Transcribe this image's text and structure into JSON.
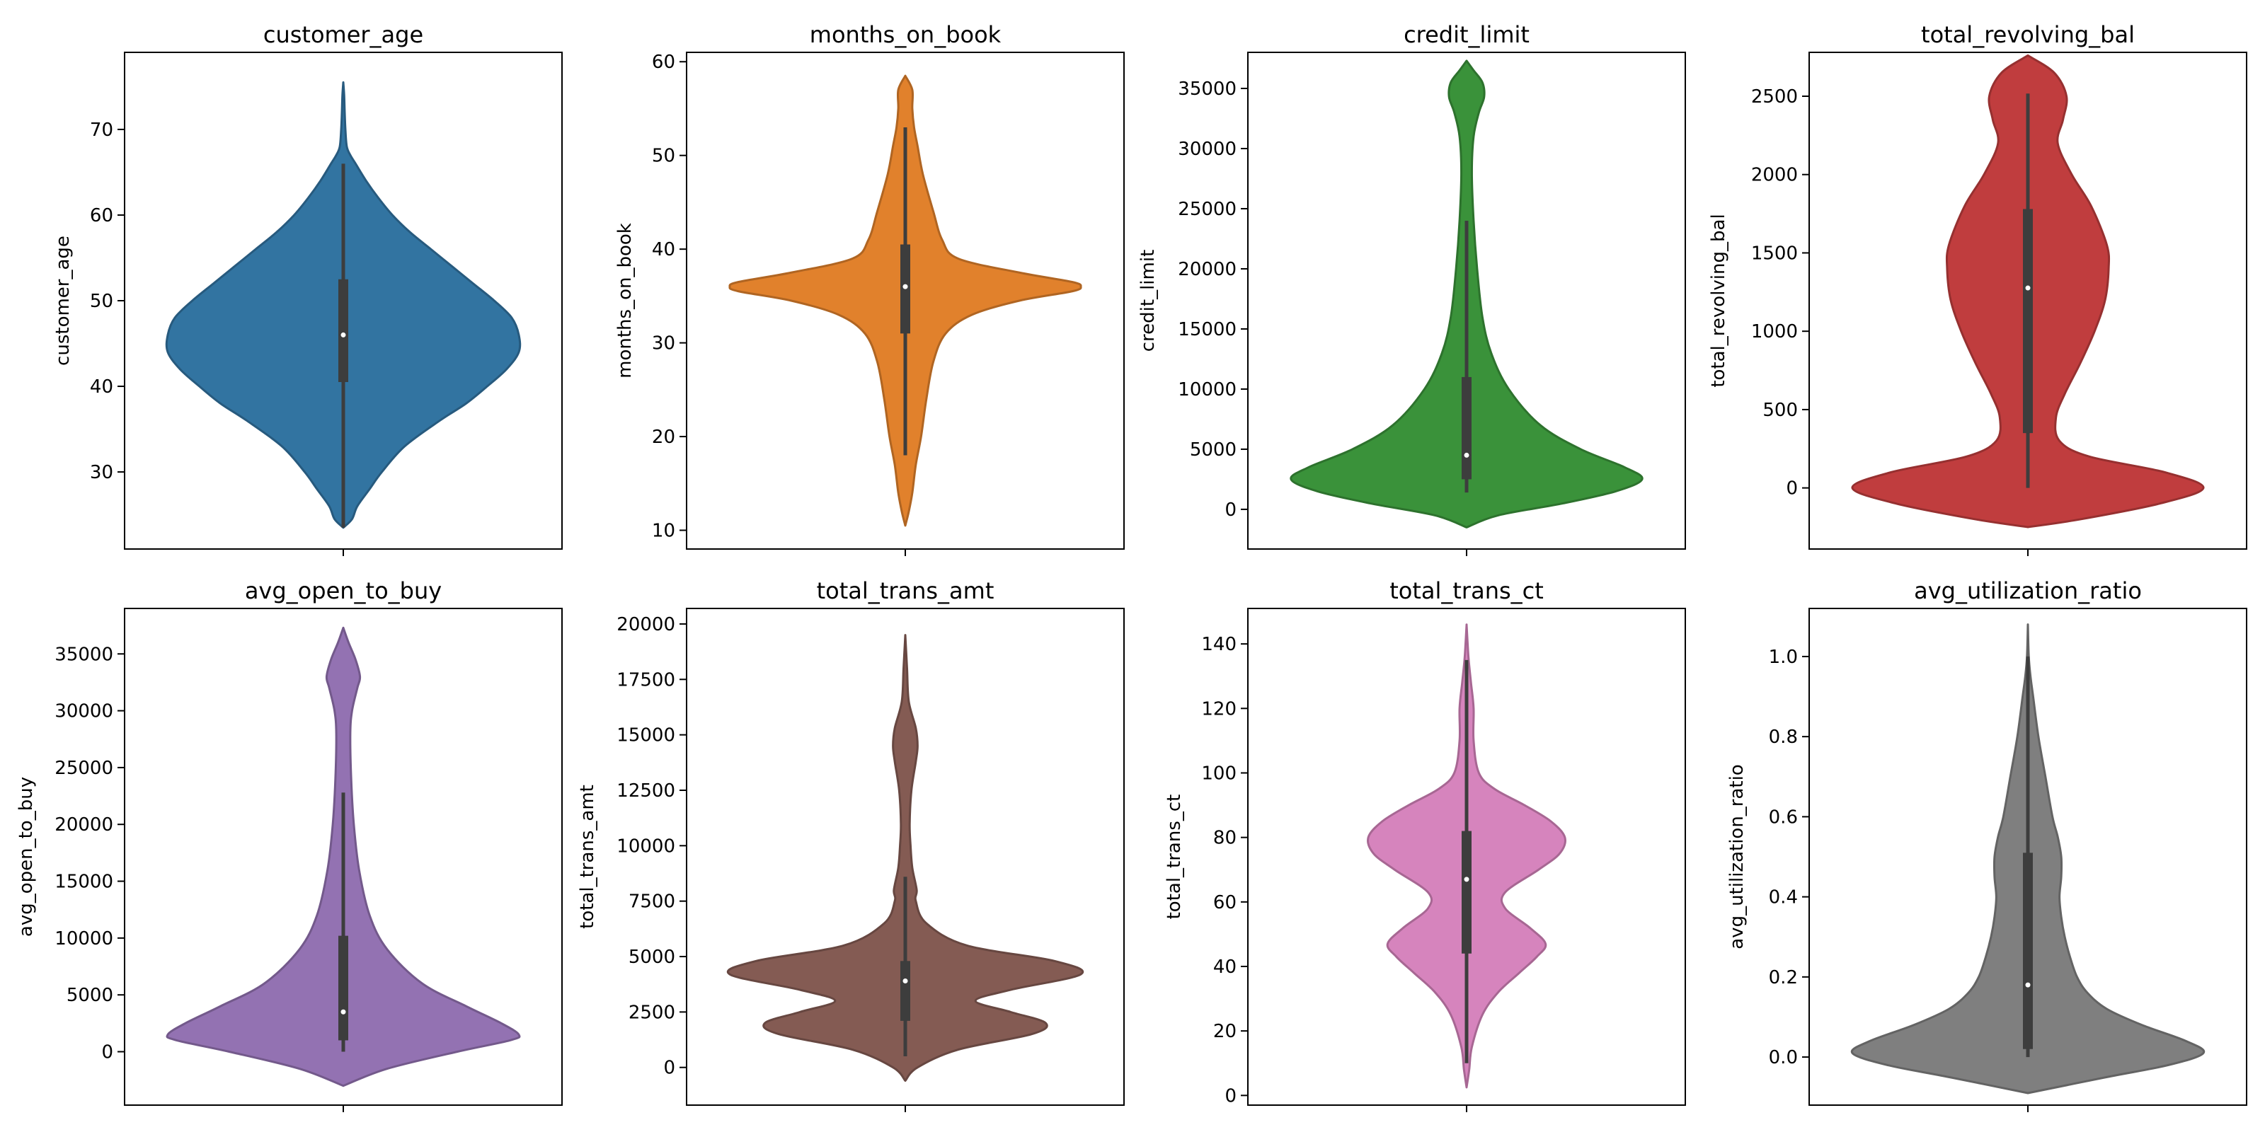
{
  "chart_data": [
    {
      "type": "violin",
      "title": "customer_age",
      "ylabel": "customer_age",
      "color": "#3274a1",
      "ylim": [
        21,
        79
      ],
      "yticks": [
        30,
        40,
        50,
        60,
        70
      ],
      "ytick_labels": [
        "30",
        "40",
        "50",
        "60",
        "70"
      ],
      "density": [
        [
          23.5,
          0
        ],
        [
          24.5,
          0.05
        ],
        [
          26,
          0.08
        ],
        [
          28,
          0.15
        ],
        [
          30,
          0.22
        ],
        [
          33,
          0.35
        ],
        [
          36,
          0.55
        ],
        [
          38,
          0.7
        ],
        [
          40,
          0.82
        ],
        [
          42,
          0.93
        ],
        [
          44,
          1.0
        ],
        [
          46,
          1.0
        ],
        [
          48,
          0.96
        ],
        [
          50,
          0.86
        ],
        [
          52,
          0.74
        ],
        [
          54,
          0.62
        ],
        [
          56,
          0.5
        ],
        [
          58,
          0.38
        ],
        [
          60,
          0.28
        ],
        [
          62,
          0.2
        ],
        [
          64,
          0.13
        ],
        [
          66,
          0.07
        ],
        [
          67,
          0.04
        ],
        [
          68,
          0.02
        ],
        [
          70,
          0.012
        ],
        [
          72,
          0.008
        ],
        [
          74,
          0.005
        ],
        [
          75.5,
          0
        ]
      ],
      "whiskers": [
        23.5,
        66
      ],
      "iqr": [
        40.5,
        52.5
      ],
      "median": 46
    },
    {
      "type": "violin",
      "title": "months_on_book",
      "ylabel": "months_on_book",
      "color": "#e1812c",
      "ylim": [
        8,
        61
      ],
      "yticks": [
        10,
        20,
        30,
        40,
        50,
        60
      ],
      "ytick_labels": [
        "10",
        "20",
        "30",
        "40",
        "50",
        "60"
      ],
      "density": [
        [
          10.5,
          0
        ],
        [
          12,
          0.02
        ],
        [
          14,
          0.04
        ],
        [
          17,
          0.06
        ],
        [
          20,
          0.09
        ],
        [
          24,
          0.12
        ],
        [
          28,
          0.16
        ],
        [
          31,
          0.23
        ],
        [
          33,
          0.38
        ],
        [
          34.5,
          0.65
        ],
        [
          35.5,
          0.95
        ],
        [
          36,
          1.0
        ],
        [
          36.5,
          0.95
        ],
        [
          37.5,
          0.65
        ],
        [
          39,
          0.3
        ],
        [
          41,
          0.21
        ],
        [
          44,
          0.16
        ],
        [
          48,
          0.1
        ],
        [
          51,
          0.07
        ],
        [
          53,
          0.05
        ],
        [
          55,
          0.04
        ],
        [
          57,
          0.04
        ],
        [
          58.5,
          0
        ]
      ],
      "whiskers": [
        18,
        53
      ],
      "iqr": [
        31,
        40.5
      ],
      "median": 36
    },
    {
      "type": "violin",
      "title": "credit_limit",
      "ylabel": "credit_limit",
      "color": "#3a923a",
      "ylim": [
        -3300,
        38000
      ],
      "yticks": [
        0,
        5000,
        10000,
        15000,
        20000,
        25000,
        30000,
        35000
      ],
      "ytick_labels": [
        "0",
        "5000",
        "10000",
        "15000",
        "20000",
        "25000",
        "30000",
        "35000"
      ],
      "density": [
        [
          -1500,
          0
        ],
        [
          -500,
          0.18
        ],
        [
          500,
          0.55
        ],
        [
          1500,
          0.85
        ],
        [
          2500,
          1.0
        ],
        [
          3500,
          0.9
        ],
        [
          5000,
          0.65
        ],
        [
          7000,
          0.42
        ],
        [
          10000,
          0.24
        ],
        [
          13000,
          0.14
        ],
        [
          16000,
          0.09
        ],
        [
          20000,
          0.06
        ],
        [
          24000,
          0.04
        ],
        [
          28000,
          0.03
        ],
        [
          31000,
          0.04
        ],
        [
          33000,
          0.07
        ],
        [
          34300,
          0.1
        ],
        [
          35500,
          0.09
        ],
        [
          36500,
          0.04
        ],
        [
          37300,
          0
        ]
      ],
      "whiskers": [
        1400,
        24000
      ],
      "iqr": [
        2500,
        11000
      ],
      "median": 4500
    },
    {
      "type": "violin",
      "title": "total_revolving_bal",
      "ylabel": "total_revolving_bal",
      "color": "#c03d3e",
      "ylim": [
        -390,
        2780
      ],
      "yticks": [
        0,
        500,
        1000,
        1500,
        2000,
        2500
      ],
      "ytick_labels": [
        "0",
        "500",
        "1000",
        "1500",
        "2000",
        "2500"
      ],
      "density": [
        [
          -250,
          0
        ],
        [
          -200,
          0.3
        ],
        [
          -100,
          0.75
        ],
        [
          0,
          1.0
        ],
        [
          100,
          0.78
        ],
        [
          200,
          0.35
        ],
        [
          300,
          0.18
        ],
        [
          450,
          0.16
        ],
        [
          600,
          0.21
        ],
        [
          800,
          0.3
        ],
        [
          1000,
          0.38
        ],
        [
          1200,
          0.44
        ],
        [
          1400,
          0.46
        ],
        [
          1550,
          0.45
        ],
        [
          1800,
          0.36
        ],
        [
          2000,
          0.25
        ],
        [
          2200,
          0.17
        ],
        [
          2350,
          0.2
        ],
        [
          2500,
          0.22
        ],
        [
          2650,
          0.15
        ],
        [
          2760,
          0
        ]
      ],
      "whiskers": [
        0,
        2517
      ],
      "iqr": [
        350,
        1780
      ],
      "median": 1276
    },
    {
      "type": "violin",
      "title": "avg_open_to_buy",
      "ylabel": "avg_open_to_buy",
      "color": "#9372b2",
      "ylim": [
        -4700,
        39000
      ],
      "yticks": [
        0,
        5000,
        10000,
        15000,
        20000,
        25000,
        30000,
        35000
      ],
      "ytick_labels": [
        "0",
        "5000",
        "10000",
        "15000",
        "20000",
        "25000",
        "30000",
        "35000"
      ],
      "density": [
        [
          -3000,
          0
        ],
        [
          -1500,
          0.25
        ],
        [
          0,
          0.65
        ],
        [
          1000,
          0.95
        ],
        [
          1500,
          1.0
        ],
        [
          2500,
          0.9
        ],
        [
          4000,
          0.7
        ],
        [
          6000,
          0.45
        ],
        [
          9000,
          0.25
        ],
        [
          12000,
          0.15
        ],
        [
          16000,
          0.09
        ],
        [
          20000,
          0.06
        ],
        [
          24000,
          0.045
        ],
        [
          28000,
          0.04
        ],
        [
          30000,
          0.05
        ],
        [
          32000,
          0.08
        ],
        [
          33000,
          0.095
        ],
        [
          34500,
          0.07
        ],
        [
          36000,
          0.03
        ],
        [
          37300,
          0
        ]
      ],
      "whiskers": [
        0,
        22800
      ],
      "iqr": [
        1000,
        10200
      ],
      "median": 3500
    },
    {
      "type": "violin",
      "title": "total_trans_amt",
      "ylabel": "total_trans_amt",
      "color": "#845b53",
      "ylim": [
        -1700,
        20700
      ],
      "yticks": [
        0,
        2500,
        5000,
        7500,
        10000,
        12500,
        15000,
        17500,
        20000
      ],
      "ytick_labels": [
        "0",
        "2500",
        "5000",
        "7500",
        "10000",
        "12500",
        "15000",
        "17500",
        "20000"
      ],
      "density": [
        [
          -600,
          0
        ],
        [
          0,
          0.07
        ],
        [
          800,
          0.3
        ],
        [
          1500,
          0.72
        ],
        [
          2000,
          0.8
        ],
        [
          2500,
          0.6
        ],
        [
          3000,
          0.4
        ],
        [
          3500,
          0.6
        ],
        [
          4200,
          1.0
        ],
        [
          4800,
          0.85
        ],
        [
          5500,
          0.35
        ],
        [
          6500,
          0.12
        ],
        [
          7500,
          0.06
        ],
        [
          8000,
          0.065
        ],
        [
          9000,
          0.04
        ],
        [
          10000,
          0.03
        ],
        [
          11000,
          0.025
        ],
        [
          12500,
          0.035
        ],
        [
          13800,
          0.06
        ],
        [
          14500,
          0.07
        ],
        [
          15300,
          0.06
        ],
        [
          16500,
          0.02
        ],
        [
          18000,
          0.01
        ],
        [
          19500,
          0
        ]
      ],
      "whiskers": [
        500,
        8600
      ],
      "iqr": [
        2100,
        4800
      ],
      "median": 3900
    },
    {
      "type": "violin",
      "title": "total_trans_ct",
      "ylabel": "total_trans_ct",
      "color": "#d684bd",
      "ylim": [
        -3,
        151
      ],
      "yticks": [
        0,
        20,
        40,
        60,
        80,
        100,
        120,
        140
      ],
      "ytick_labels": [
        "0",
        "20",
        "40",
        "60",
        "80",
        "100",
        "120",
        "140"
      ],
      "density": [
        [
          2.5,
          0
        ],
        [
          8,
          0.015
        ],
        [
          15,
          0.03
        ],
        [
          25,
          0.09
        ],
        [
          32,
          0.18
        ],
        [
          38,
          0.3
        ],
        [
          43,
          0.4
        ],
        [
          47,
          0.45
        ],
        [
          52,
          0.36
        ],
        [
          58,
          0.22
        ],
        [
          63,
          0.22
        ],
        [
          70,
          0.41
        ],
        [
          75,
          0.53
        ],
        [
          80,
          0.56
        ],
        [
          85,
          0.48
        ],
        [
          90,
          0.33
        ],
        [
          95,
          0.16
        ],
        [
          100,
          0.07
        ],
        [
          110,
          0.04
        ],
        [
          120,
          0.04
        ],
        [
          128,
          0.025
        ],
        [
          135,
          0.012
        ],
        [
          140,
          0.006
        ],
        [
          146,
          0
        ]
      ],
      "whiskers": [
        10,
        135
      ],
      "iqr": [
        44,
        82
      ],
      "median": 67
    },
    {
      "type": "violin",
      "title": "avg_utilization_ratio",
      "ylabel": "avg_utilization_ratio",
      "color": "#7f7f7f",
      "ylim": [
        -0.12,
        1.12
      ],
      "yticks": [
        0.0,
        0.2,
        0.4,
        0.6,
        0.8,
        1.0
      ],
      "ytick_labels": [
        "0.0",
        "0.2",
        "0.4",
        "0.6",
        "0.8",
        "1.0"
      ],
      "density": [
        [
          -0.09,
          0
        ],
        [
          -0.05,
          0.45
        ],
        [
          -0.02,
          0.8
        ],
        [
          0.01,
          1.0
        ],
        [
          0.04,
          0.9
        ],
        [
          0.08,
          0.65
        ],
        [
          0.12,
          0.45
        ],
        [
          0.16,
          0.34
        ],
        [
          0.2,
          0.28
        ],
        [
          0.25,
          0.24
        ],
        [
          0.3,
          0.21
        ],
        [
          0.35,
          0.19
        ],
        [
          0.4,
          0.18
        ],
        [
          0.45,
          0.19
        ],
        [
          0.5,
          0.19
        ],
        [
          0.55,
          0.17
        ],
        [
          0.6,
          0.14
        ],
        [
          0.7,
          0.1
        ],
        [
          0.8,
          0.06
        ],
        [
          0.9,
          0.03
        ],
        [
          0.95,
          0.015
        ],
        [
          1.0,
          0.005
        ],
        [
          1.08,
          0
        ]
      ],
      "whiskers": [
        0,
        1.0
      ],
      "iqr": [
        0.02,
        0.51
      ],
      "median": 0.18
    }
  ]
}
